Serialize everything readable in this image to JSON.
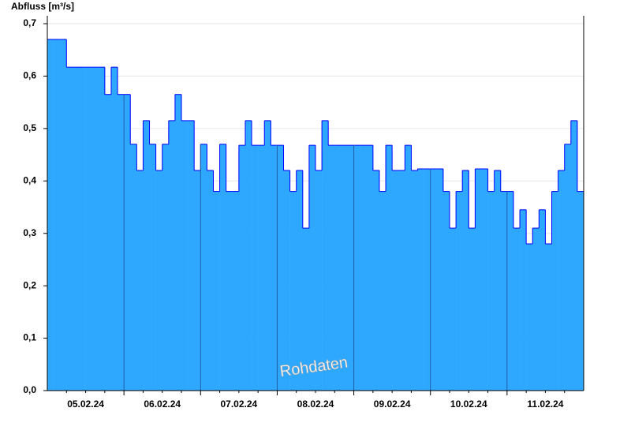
{
  "chart_data": {
    "type": "step-area",
    "title": "Abfluss [m³/s]",
    "watermark": "Rohdaten",
    "color": "#2ea8ff",
    "line_color": "#0000ff",
    "grid": true,
    "categories": [
      null,
      null,
      null,
      null,
      null,
      null,
      "05.02.24",
      null,
      null,
      null,
      null,
      null,
      null,
      null,
      null,
      null,
      null,
      null,
      "06.02.24",
      null,
      null,
      null,
      null,
      null,
      null,
      null,
      null,
      null,
      null,
      null,
      "07.02.24",
      null,
      null,
      null,
      null,
      null,
      null,
      null,
      null,
      null,
      null,
      null,
      "08.02.24",
      null,
      null,
      null,
      null,
      null,
      null,
      null,
      null,
      null,
      null,
      null,
      "09.02.24",
      null,
      null,
      null,
      null,
      null,
      null,
      null,
      null,
      null,
      null,
      null,
      "10.02.24",
      null,
      null,
      null,
      null,
      null,
      null,
      null,
      null,
      null,
      null,
      null,
      "11.02.24",
      null,
      null,
      null,
      null,
      null
    ],
    "values": [
      0.67,
      0.67,
      0.67,
      0.617,
      0.617,
      0.617,
      0.617,
      0.617,
      0.617,
      0.565,
      0.617,
      0.565,
      0.565,
      0.47,
      0.42,
      0.515,
      0.47,
      0.42,
      0.47,
      0.515,
      0.565,
      0.515,
      0.515,
      0.42,
      0.47,
      0.42,
      0.38,
      0.47,
      0.38,
      0.38,
      0.468,
      0.515,
      0.468,
      0.468,
      0.515,
      0.468,
      0.468,
      0.42,
      0.38,
      0.42,
      0.31,
      0.468,
      0.42,
      0.515,
      0.468,
      0.468,
      0.468,
      0.468,
      0.468,
      0.468,
      0.468,
      0.42,
      0.38,
      0.468,
      0.42,
      0.42,
      0.468,
      0.42,
      0.423,
      0.423,
      0.423,
      0.423,
      0.38,
      0.31,
      0.38,
      0.42,
      0.31,
      0.423,
      0.423,
      0.38,
      0.42,
      0.38,
      0.38,
      0.31,
      0.345,
      0.28,
      0.31,
      0.345,
      0.28,
      0.38,
      0.42,
      0.47,
      0.515,
      0.38
    ],
    "ylim": [
      0,
      0.7
    ],
    "yticks": [
      {
        "value": 0,
        "label": "0,0"
      },
      {
        "value": 0.1,
        "label": "0,1"
      },
      {
        "value": 0.2,
        "label": "0,2"
      },
      {
        "value": 0.3,
        "label": "0,3"
      },
      {
        "value": 0.4,
        "label": "0,4"
      },
      {
        "value": 0.5,
        "label": "0,5"
      },
      {
        "value": 0.6,
        "label": "0,6"
      },
      {
        "value": 0.7,
        "label": "0,7"
      }
    ]
  }
}
